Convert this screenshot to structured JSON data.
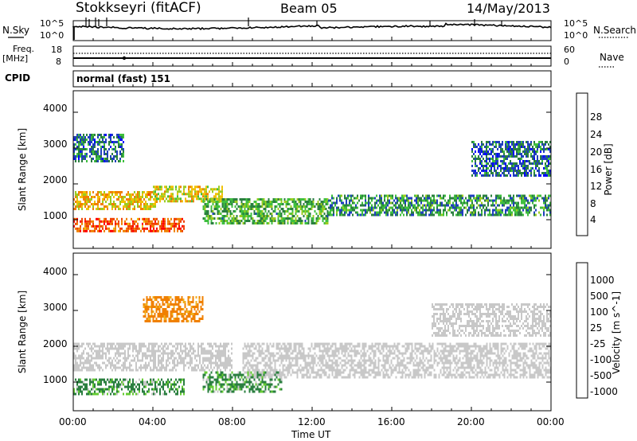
{
  "header": {
    "station": "Stokkseyri (fitACF)",
    "beam": "Beam 05",
    "date": "14/May/2013"
  },
  "nsky_panel": {
    "label": "N.Sky",
    "left_ticks": [
      "10^5",
      "10^0"
    ],
    "right_ticks": [
      "10^5",
      "10^0"
    ],
    "legend_label": "N.Search"
  },
  "freq_panel": {
    "label_line1": "Freq.",
    "label_line2": "[MHz]",
    "left_ticks": [
      "18",
      "8"
    ],
    "right_ticks": [
      "60",
      "0"
    ],
    "legend_label": "Nave"
  },
  "cpid_panel": {
    "label": "CPID",
    "value": "normal (fast) 151"
  },
  "colors": {
    "power": [
      "#0000ff",
      "#1f3fbf",
      "#2a7f3f",
      "#3fbf3f",
      "#9bcc20",
      "#f0c000",
      "#f08000",
      "#f04000",
      "#ff0000"
    ],
    "velocity": [
      "#ff0000",
      "#f04000",
      "#f08000",
      "#f0b020",
      "#c8c8c8",
      "#c8c8c8",
      "#66cc33",
      "#2a7f3f",
      "#1f3fbf",
      "#0000ff"
    ]
  },
  "chart_data": [
    {
      "type": "heatmap",
      "title": "Power",
      "xlabel": "Time UT",
      "ylabel": "Slant Range [km]",
      "xticks": [
        "00:00",
        "04:00",
        "08:00",
        "12:00",
        "16:00",
        "20:00",
        "00:00"
      ],
      "yticks": [
        "1000",
        "2000",
        "3000",
        "4000"
      ],
      "ylim": [
        200,
        4600
      ],
      "colorbar_label": "Power [dB]",
      "colorbar_ticks": [
        "4",
        "8",
        "12",
        "16",
        "20",
        "24",
        "28"
      ],
      "colorbar_range": [
        0,
        32
      ],
      "regions": [
        {
          "t": [
            0.0,
            5.6
          ],
          "r": [
            650,
            1050
          ],
          "v": 26
        },
        {
          "t": [
            0.0,
            4.2
          ],
          "r": [
            1300,
            1800
          ],
          "v": 20
        },
        {
          "t": [
            4.0,
            7.5
          ],
          "r": [
            1500,
            1950
          ],
          "v": 18
        },
        {
          "t": [
            6.5,
            12.8
          ],
          "r": [
            900,
            1600
          ],
          "v": 12
        },
        {
          "t": [
            12.8,
            24.0
          ],
          "r": [
            1100,
            1700
          ],
          "v": 10
        },
        {
          "t": [
            0.0,
            2.5
          ],
          "r": [
            2600,
            3400
          ],
          "v": 8
        },
        {
          "t": [
            20.0,
            24.0
          ],
          "r": [
            2200,
            3200
          ],
          "v": 7
        }
      ]
    },
    {
      "type": "heatmap",
      "title": "Velocity",
      "xlabel": "Time UT",
      "ylabel": "Slant Range [km]",
      "xticks": [
        "00:00",
        "04:00",
        "08:00",
        "12:00",
        "16:00",
        "20:00",
        "00:00"
      ],
      "yticks": [
        "1000",
        "2000",
        "3000",
        "4000"
      ],
      "ylim": [
        200,
        4600
      ],
      "colorbar_label": "Velocity [m s^-1]",
      "colorbar_ticks": [
        "1000",
        "500",
        "100",
        "25",
        "-25",
        "-100",
        "-500",
        "-1000"
      ],
      "regions": [
        {
          "t": [
            0.0,
            5.6
          ],
          "r": [
            650,
            1100
          ],
          "v": 150
        },
        {
          "t": [
            0.0,
            8.0
          ],
          "r": [
            1300,
            2100
          ],
          "v": 0
        },
        {
          "t": [
            6.5,
            10.5
          ],
          "r": [
            750,
            1300
          ],
          "v": 150
        },
        {
          "t": [
            8.5,
            24.0
          ],
          "r": [
            1100,
            2100
          ],
          "v": 0
        },
        {
          "t": [
            18.0,
            24.0
          ],
          "r": [
            2300,
            3200
          ],
          "v": 0
        },
        {
          "t": [
            3.5,
            6.5
          ],
          "r": [
            2700,
            3400
          ],
          "v": -200
        }
      ]
    }
  ]
}
